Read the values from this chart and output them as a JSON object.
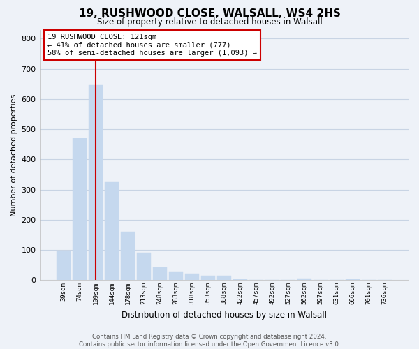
{
  "title": "19, RUSHWOOD CLOSE, WALSALL, WS4 2HS",
  "subtitle": "Size of property relative to detached houses in Walsall",
  "xlabel": "Distribution of detached houses by size in Walsall",
  "ylabel": "Number of detached properties",
  "bar_values": [
    95,
    470,
    645,
    325,
    160,
    90,
    42,
    28,
    22,
    15,
    14,
    2,
    0,
    0,
    0,
    6,
    0,
    0,
    2,
    0,
    0
  ],
  "bar_labels": [
    "39sqm",
    "74sqm",
    "109sqm",
    "144sqm",
    "178sqm",
    "213sqm",
    "248sqm",
    "283sqm",
    "318sqm",
    "353sqm",
    "388sqm",
    "422sqm",
    "457sqm",
    "492sqm",
    "527sqm",
    "562sqm",
    "597sqm",
    "631sqm",
    "666sqm",
    "701sqm",
    "736sqm"
  ],
  "bar_color": "#c5d8ee",
  "vline_index": 2,
  "vline_color": "#cc0000",
  "annotation_line1": "19 RUSHWOOD CLOSE: 121sqm",
  "annotation_line2": "← 41% of detached houses are smaller (777)",
  "annotation_line3": "58% of semi-detached houses are larger (1,093) →",
  "ann_box_edgecolor": "#cc0000",
  "ann_box_facecolor": "#ffffff",
  "ylim": [
    0,
    830
  ],
  "yticks": [
    0,
    100,
    200,
    300,
    400,
    500,
    600,
    700,
    800
  ],
  "grid_color": "#c8d4e4",
  "footer_text": "Contains HM Land Registry data © Crown copyright and database right 2024.\nContains public sector information licensed under the Open Government Licence v3.0.",
  "background_color": "#eef2f8",
  "plot_bg_color": "#eef2f8"
}
